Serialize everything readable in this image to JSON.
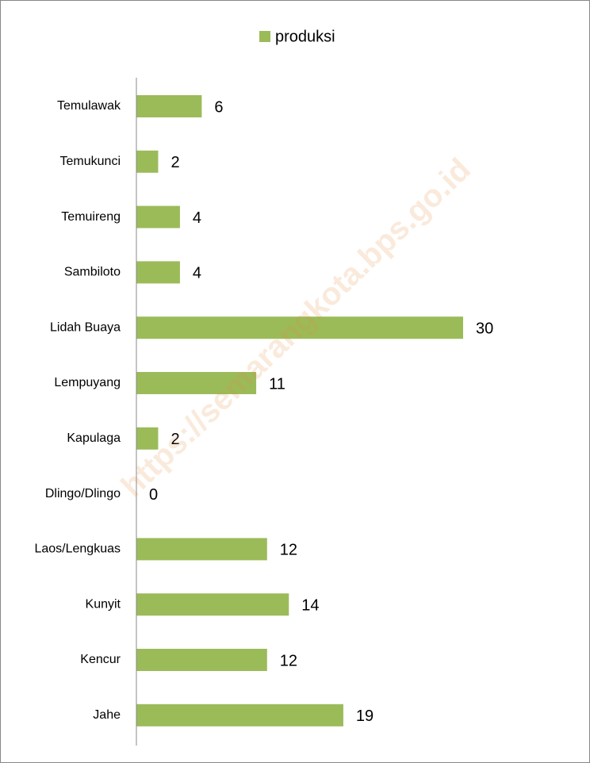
{
  "chart_data": {
    "type": "barh",
    "categories": [
      "Temulawak",
      "Temukunci",
      "Temuireng",
      "Sambiloto",
      "Lidah Buaya",
      "Lempuyang",
      "Kapulaga",
      "Dlingo/Dlingo",
      "Laos/Lengkuas",
      "Kunyit",
      "Kencur",
      "Jahe"
    ],
    "series": [
      {
        "name": "produksi",
        "color": "#9bbb59",
        "values": [
          6,
          2,
          4,
          4,
          30,
          11,
          2,
          0,
          12,
          14,
          12,
          19
        ]
      }
    ],
    "legend": "top",
    "watermark": "https://semarangkota.bps.go.id"
  }
}
